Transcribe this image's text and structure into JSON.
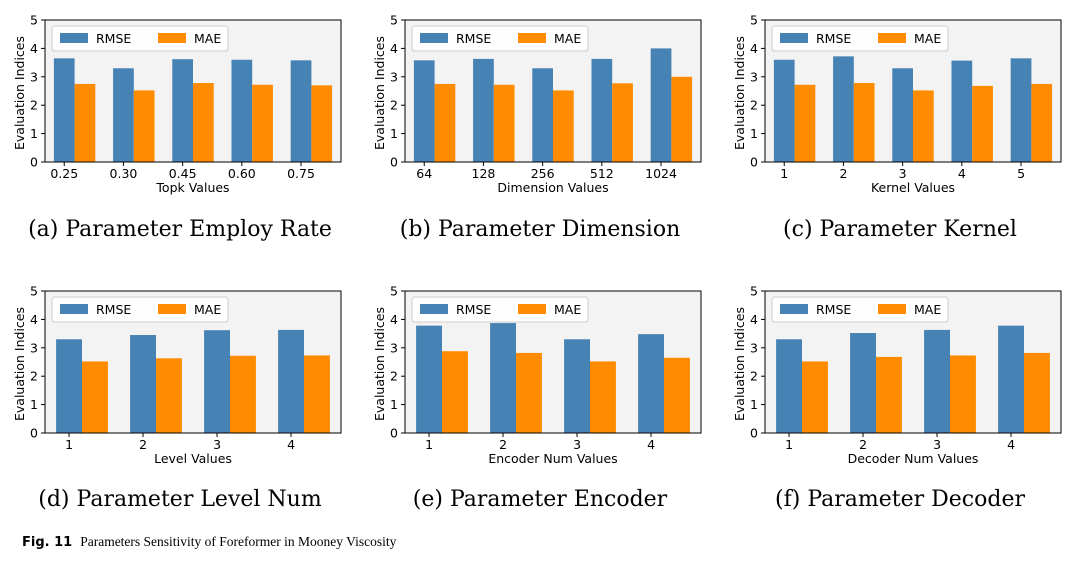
{
  "colors": {
    "rmse": "#4682b4",
    "mae": "#ff8c00",
    "plot_bg": "#f3f3f3"
  },
  "figure_caption": {
    "label": "Fig. 11",
    "text": "Parameters Sensitivity of Foreformer in Mooney Viscosity"
  },
  "chart_data": [
    {
      "type": "bar",
      "caption": "(a) Parameter Employ Rate",
      "categories": [
        "0.25",
        "0.30",
        "0.45",
        "0.60",
        "0.75"
      ],
      "series": [
        {
          "name": "RMSE",
          "values": [
            3.65,
            3.3,
            3.62,
            3.6,
            3.58
          ]
        },
        {
          "name": "MAE",
          "values": [
            2.75,
            2.52,
            2.78,
            2.72,
            2.7
          ]
        }
      ],
      "xlabel": "Topk Values",
      "ylabel": "Evaluation Indices",
      "ylim": [
        0,
        5
      ],
      "yticks": [
        "0",
        "1",
        "2",
        "3",
        "4",
        "5"
      ],
      "grid": false,
      "legend": "top-left"
    },
    {
      "type": "bar",
      "caption": "(b) Parameter Dimension",
      "categories": [
        "64",
        "128",
        "256",
        "512",
        "1024"
      ],
      "series": [
        {
          "name": "RMSE",
          "values": [
            3.58,
            3.63,
            3.3,
            3.63,
            4.0
          ]
        },
        {
          "name": "MAE",
          "values": [
            2.75,
            2.72,
            2.52,
            2.77,
            3.0
          ]
        }
      ],
      "xlabel": "Dimension Values",
      "ylabel": "Evaluation Indices",
      "ylim": [
        0,
        5
      ],
      "yticks": [
        "0",
        "1",
        "2",
        "3",
        "4",
        "5"
      ],
      "grid": false,
      "legend": "top-left"
    },
    {
      "type": "bar",
      "caption": "(c) Parameter Kernel",
      "categories": [
        "1",
        "2",
        "3",
        "4",
        "5"
      ],
      "series": [
        {
          "name": "RMSE",
          "values": [
            3.6,
            3.72,
            3.3,
            3.57,
            3.65
          ]
        },
        {
          "name": "MAE",
          "values": [
            2.72,
            2.78,
            2.52,
            2.68,
            2.75
          ]
        }
      ],
      "xlabel": "Kernel Values",
      "ylabel": "Evaluation Indices",
      "ylim": [
        0,
        5
      ],
      "yticks": [
        "0",
        "1",
        "2",
        "3",
        "4",
        "5"
      ],
      "grid": false,
      "legend": "top-left"
    },
    {
      "type": "bar",
      "caption": "(d) Parameter Level Num",
      "categories": [
        "1",
        "2",
        "3",
        "4"
      ],
      "series": [
        {
          "name": "RMSE",
          "values": [
            3.3,
            3.45,
            3.62,
            3.63
          ]
        },
        {
          "name": "MAE",
          "values": [
            2.52,
            2.63,
            2.72,
            2.73
          ]
        }
      ],
      "xlabel": "Level Values",
      "ylabel": "Evaluation Indices",
      "ylim": [
        0,
        5
      ],
      "yticks": [
        "0",
        "1",
        "2",
        "3",
        "4",
        "5"
      ],
      "grid": false,
      "legend": "top-left"
    },
    {
      "type": "bar",
      "caption": "(e) Parameter Encoder",
      "categories": [
        "1",
        "2",
        "3",
        "4"
      ],
      "series": [
        {
          "name": "RMSE",
          "values": [
            3.78,
            3.87,
            3.3,
            3.48
          ]
        },
        {
          "name": "MAE",
          "values": [
            2.88,
            2.82,
            2.52,
            2.65
          ]
        }
      ],
      "xlabel": "Encoder Num Values",
      "ylabel": "Evaluation Indices",
      "ylim": [
        0,
        5
      ],
      "yticks": [
        "0",
        "1",
        "2",
        "3",
        "4",
        "5"
      ],
      "grid": false,
      "legend": "top-left"
    },
    {
      "type": "bar",
      "caption": "(f) Parameter Decoder",
      "categories": [
        "1",
        "2",
        "3",
        "4"
      ],
      "series": [
        {
          "name": "RMSE",
          "values": [
            3.3,
            3.52,
            3.63,
            3.78
          ]
        },
        {
          "name": "MAE",
          "values": [
            2.52,
            2.68,
            2.73,
            2.82
          ]
        }
      ],
      "xlabel": "Decoder Num Values",
      "ylabel": "Evaluation Indices",
      "ylim": [
        0,
        5
      ],
      "yticks": [
        "0",
        "1",
        "2",
        "3",
        "4",
        "5"
      ],
      "grid": false,
      "legend": "top-left"
    }
  ]
}
